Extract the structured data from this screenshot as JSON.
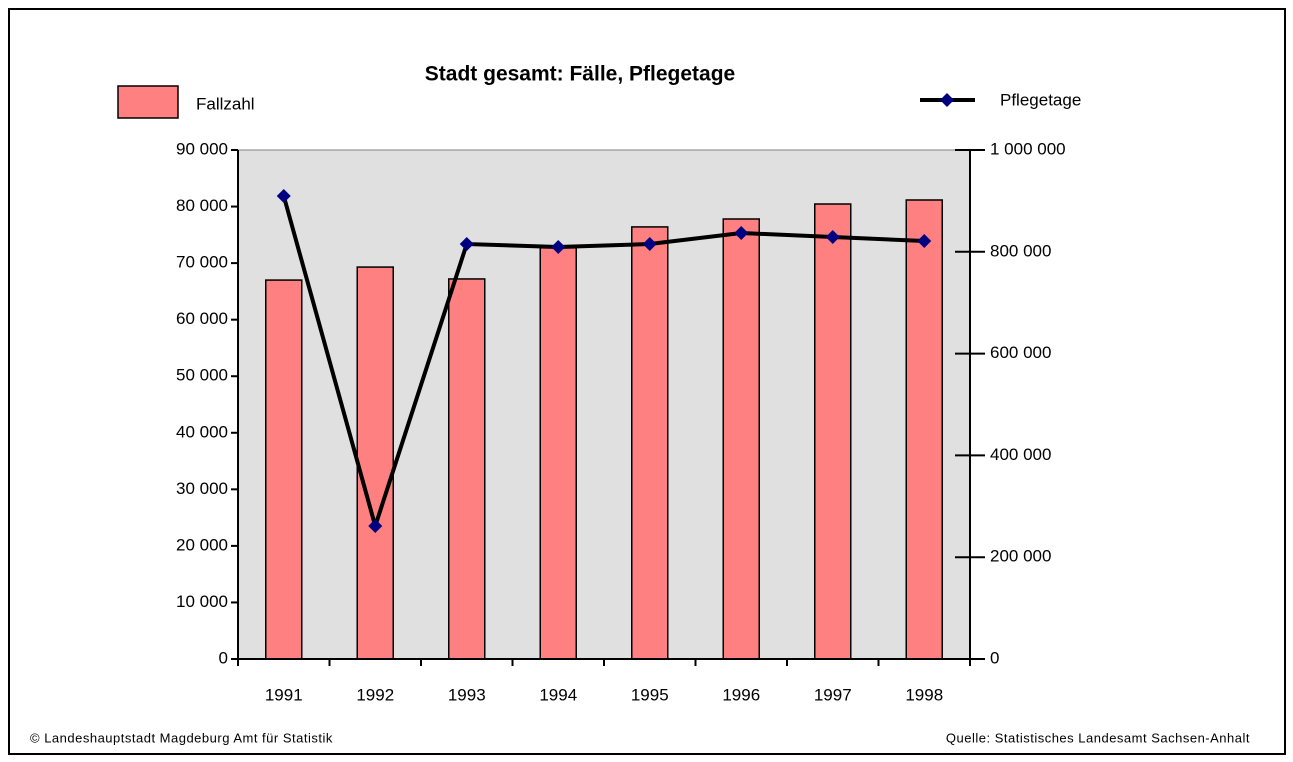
{
  "chart_data": {
    "type": "bar_line",
    "title": "Stadt gesamt:  Fälle, Pflegetage",
    "categories": [
      "1991",
      "1992",
      "1993",
      "1994",
      "1995",
      "1996",
      "1997",
      "1998"
    ],
    "series": [
      {
        "name": "Fallzahl",
        "type": "bar",
        "color": "#ff8080",
        "values": [
          67000,
          69300,
          67200,
          72700,
          76400,
          77800,
          80450,
          81160
        ]
      },
      {
        "name": "Pflegetage",
        "type": "line",
        "axis": "y2",
        "color": "#000000",
        "marker_color": "#000080",
        "values": [
          909600,
          261300,
          815300,
          809400,
          815300,
          836900,
          829100,
          821200
        ]
      }
    ],
    "ylim": [
      0,
      90000
    ],
    "yticks": [
      0,
      {
        "value": 10000,
        "label": "10 000"
      },
      {
        "value": 20000,
        "label": "20 000"
      },
      {
        "value": 30000,
        "label": "30 000"
      },
      {
        "value": 40000,
        "label": "40 000"
      },
      {
        "value": 50000,
        "label": "50 000"
      },
      {
        "value": 60000,
        "label": "60 000"
      },
      {
        "value": 70000,
        "label": "70 000"
      },
      {
        "value": 80000,
        "label": "80 000"
      },
      {
        "value": 90000,
        "label": "90 000"
      }
    ],
    "y2lim": [
      0,
      1000000
    ],
    "y2ticks": [
      0,
      {
        "value": 200000,
        "label": "200 000"
      },
      {
        "value": 400000,
        "label": "400 000"
      },
      {
        "value": 600000,
        "label": "600 000"
      },
      {
        "value": 800000,
        "label": "800 000"
      },
      {
        "value": 1000000,
        "label": "1 000 000"
      }
    ],
    "grid": false,
    "plot_background": "#e0e0e0",
    "footer_left": "© Landeshauptstadt Magdeburg  Amt für Statistik",
    "footer_right": "Quelle: Statistisches Landesamt Sachsen-Anhalt"
  }
}
